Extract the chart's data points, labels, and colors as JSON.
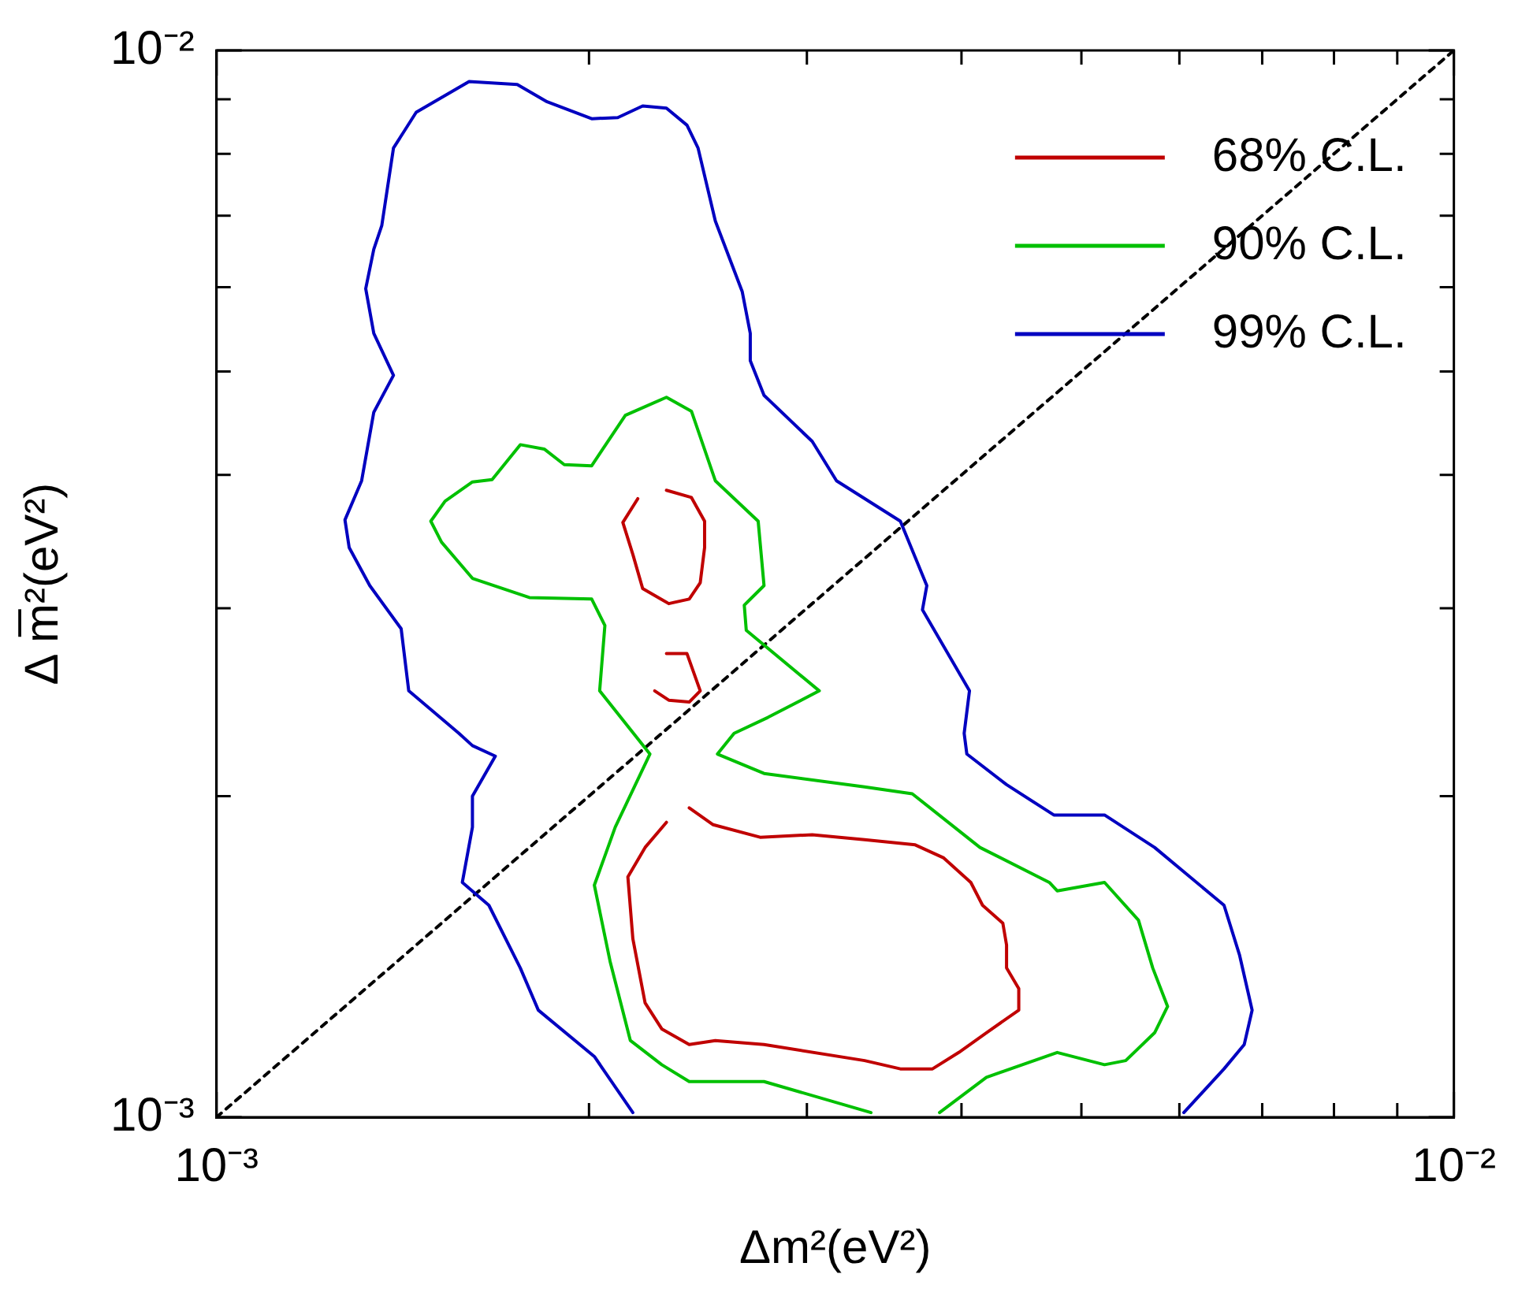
{
  "chart_data": {
    "type": "line",
    "xlabel": "Δm²(eV²)",
    "ylabel": "Δ m̅²(eV²)",
    "log": "xy",
    "legend": "top right",
    "grid": false,
    "marker": "none",
    "xlim": [
      0.001,
      0.01
    ],
    "ylim": [
      0.001,
      0.01
    ],
    "xticks": [
      {
        "value": 0.001,
        "label": "10⁻³"
      },
      {
        "value": 0.002,
        "label": null
      },
      {
        "value": 0.003,
        "label": null
      },
      {
        "value": 0.004,
        "label": null
      },
      {
        "value": 0.005,
        "label": null
      },
      {
        "value": 0.006,
        "label": null
      },
      {
        "value": 0.007,
        "label": null
      },
      {
        "value": 0.008,
        "label": null
      },
      {
        "value": 0.009,
        "label": null
      },
      {
        "value": 0.01,
        "label": "10⁻²"
      }
    ],
    "yticks": [
      {
        "value": 0.001,
        "label": "10⁻³"
      },
      {
        "value": 0.002,
        "label": null
      },
      {
        "value": 0.003,
        "label": null
      },
      {
        "value": 0.004,
        "label": null
      },
      {
        "value": 0.005,
        "label": null
      },
      {
        "value": 0.006,
        "label": null
      },
      {
        "value": 0.007,
        "label": null
      },
      {
        "value": 0.008,
        "label": null
      },
      {
        "value": 0.009,
        "label": null
      },
      {
        "value": 0.01,
        "label": "10⁻²"
      }
    ],
    "series": [
      {
        "name": "68% C.L.",
        "color": "#c00000",
        "x": [
          0.00241,
          0.00252,
          0.00275,
          0.00303,
          0.00334,
          0.00367,
          0.00387,
          0.00407,
          0.00416,
          0.00432,
          0.00435,
          0.00435,
          0.00445,
          0.00445,
          0.00419,
          0.00398,
          0.00379,
          0.00357,
          0.00334,
          0.00277,
          0.00253,
          0.00241,
          0.00229,
          0.00222,
          0.00217,
          0.00215,
          0.00222,
          0.00231,
          0.00241
        ],
        "values": [
          0.00195,
          0.00188,
          0.00183,
          0.00184,
          0.00182,
          0.0018,
          0.00175,
          0.00166,
          0.00158,
          0.00152,
          0.00145,
          0.00138,
          0.00132,
          0.00126,
          0.0012,
          0.00115,
          0.00111,
          0.00111,
          0.00113,
          0.00117,
          0.00118,
          0.00117,
          0.00121,
          0.00128,
          0.00147,
          0.00168,
          0.00179,
          0.00189,
          0.00195
        ]
      },
      {
        "name": "90% C.L.",
        "color": "#00c000",
        "x": [
          0.00338,
          0.00277,
          0.00241,
          0.00229,
          0.00216,
          0.00208,
          0.00202,
          0.0021,
          0.00224,
          0.00204,
          0.00206,
          0.00201,
          0.00179,
          0.00161,
          0.00152,
          0.00149,
          0.00153,
          0.00161,
          0.00167,
          0.00176,
          0.00184,
          0.00191,
          0.00201,
          0.00214,
          0.00231,
          0.00242,
          0.00253,
          0.00274,
          0.00277,
          0.00267,
          0.00268,
          0.00307,
          0.00279,
          0.00262,
          0.00254,
          0.00277,
          0.00334,
          0.00365,
          0.00414,
          0.00471,
          0.00478,
          0.00522,
          0.00556,
          0.00571,
          0.00587,
          0.00573,
          0.00543,
          0.00522,
          0.00478,
          0.00419,
          0.00384
        ],
        "values": [
          0.00101,
          0.00108,
          0.00108,
          0.00112,
          0.00118,
          0.0014,
          0.00165,
          0.00187,
          0.00219,
          0.00251,
          0.00289,
          0.00306,
          0.00307,
          0.0032,
          0.00346,
          0.00362,
          0.00378,
          0.00394,
          0.00396,
          0.00427,
          0.00423,
          0.00409,
          0.00408,
          0.00455,
          0.00473,
          0.00459,
          0.00395,
          0.00362,
          0.00315,
          0.00302,
          0.00286,
          0.00251,
          0.00237,
          0.00229,
          0.00219,
          0.0021,
          0.00204,
          0.00201,
          0.00179,
          0.00166,
          0.00163,
          0.00166,
          0.00153,
          0.00138,
          0.00127,
          0.0012,
          0.00113,
          0.00112,
          0.00115,
          0.00109,
          0.00101
        ]
      },
      {
        "name": "99% C.L.",
        "color": "#0000c0",
        "x": [
          0.00217,
          0.00202,
          0.00182,
          0.00176,
          0.00166,
          0.00158,
          0.00161,
          0.00161,
          0.00168,
          0.00161,
          0.00157,
          0.00143,
          0.00141,
          0.00133,
          0.00128,
          0.00127,
          0.00131,
          0.00134,
          0.00139,
          0.00134,
          0.00132,
          0.00134,
          0.00136,
          0.00139,
          0.00145,
          0.0016,
          0.00175,
          0.00185,
          0.00201,
          0.00211,
          0.00221,
          0.00231,
          0.0024,
          0.00245,
          0.00253,
          0.00266,
          0.0027,
          0.0027,
          0.00277,
          0.00303,
          0.00317,
          0.00357,
          0.00375,
          0.00372,
          0.00406,
          0.00402,
          0.00404,
          0.00435,
          0.00475,
          0.00522,
          0.00573,
          0.00652,
          0.00671,
          0.00687,
          0.00677,
          0.00652,
          0.00605
        ],
        "values": [
          0.00101,
          0.00114,
          0.00126,
          0.00138,
          0.00158,
          0.00166,
          0.00187,
          0.002,
          0.00218,
          0.00223,
          0.00229,
          0.00251,
          0.00287,
          0.00315,
          0.00342,
          0.00363,
          0.00395,
          0.00458,
          0.00496,
          0.00543,
          0.00598,
          0.00651,
          0.00685,
          0.0081,
          0.00875,
          0.00935,
          0.00929,
          0.00895,
          0.00863,
          0.00865,
          0.00887,
          0.00883,
          0.00851,
          0.0081,
          0.00692,
          0.00594,
          0.00543,
          0.00512,
          0.00475,
          0.0043,
          0.00395,
          0.00362,
          0.00315,
          0.00299,
          0.00251,
          0.00229,
          0.00219,
          0.00205,
          0.00192,
          0.00192,
          0.00179,
          0.00158,
          0.00142,
          0.00126,
          0.00117,
          0.00111,
          0.00101
        ]
      },
      {
        "color": "#c00000",
        "x": [
          0.00231,
          0.00242,
          0.00248,
          0.00248,
          0.00246,
          0.00241,
          0.00232,
          0.00221,
          0.00217,
          0.00213,
          0.00219,
          0.00231
        ],
        "values": [
          0.00387,
          0.00381,
          0.00362,
          0.00342,
          0.00317,
          0.00306,
          0.00303,
          0.00313,
          0.00337,
          0.00361,
          0.0038,
          0.00387
        ]
      },
      {
        "color": "#c00000",
        "x": [
          0.00231,
          0.0024,
          0.00246,
          0.00241,
          0.00232,
          0.00226,
          0.00231
        ],
        "values": [
          0.00272,
          0.00272,
          0.00251,
          0.00245,
          0.00246,
          0.00251,
          0.00272
        ]
      },
      {
        "color": "#000000",
        "line_style": "dotted",
        "x": [
          0.001,
          0.01
        ],
        "values": [
          0.001,
          0.01
        ]
      }
    ]
  }
}
